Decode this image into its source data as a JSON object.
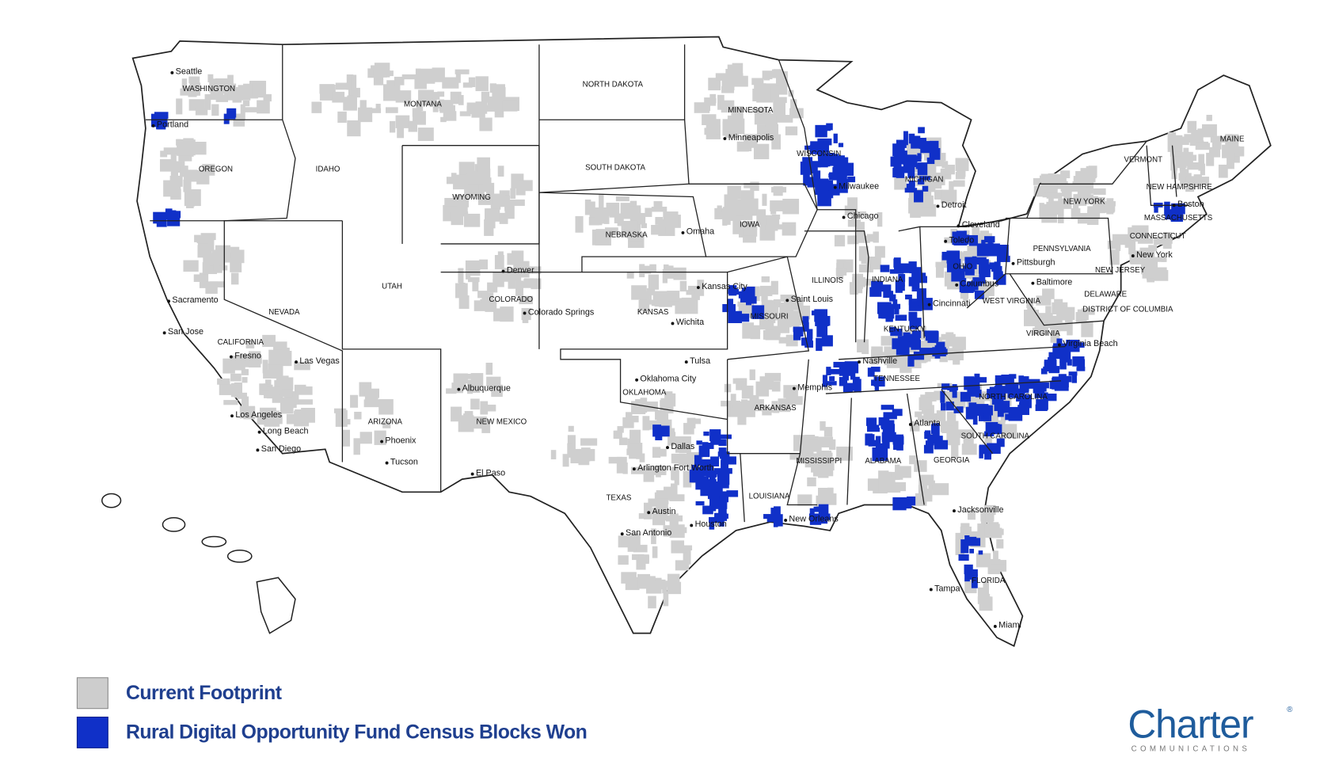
{
  "map": {
    "states": [
      "WASHINGTON",
      "OREGON",
      "CALIFORNIA",
      "NEVADA",
      "IDAHO",
      "MONTANA",
      "WYOMING",
      "UTAH",
      "COLORADO",
      "ARIZONA",
      "NEW MEXICO",
      "NORTH DAKOTA",
      "SOUTH DAKOTA",
      "NEBRASKA",
      "KANSAS",
      "OKLAHOMA",
      "TEXAS",
      "MINNESOTA",
      "IOWA",
      "MISSOURI",
      "ARKANSAS",
      "LOUISIANA",
      "WISCONSIN",
      "ILLINOIS",
      "MICHIGAN",
      "INDIANA",
      "OHIO",
      "KENTUCKY",
      "TENNESSEE",
      "MISSISSIPPI",
      "ALABAMA",
      "GEORGIA",
      "FLORIDA",
      "SOUTH CAROLINA",
      "NORTH CAROLINA",
      "VIRGINIA",
      "WEST VIRGINIA",
      "PENNSYLVANIA",
      "NEW YORK",
      "VERMONT",
      "NEW HAMPSHIRE",
      "MAINE",
      "MASSACHUSETTS",
      "CONNECTICUT",
      "NEW JERSEY",
      "DELAWARE",
      "DISTRICT OF COLUMBIA"
    ],
    "cities": [
      "Seattle",
      "Portland",
      "Sacramento",
      "San Jose",
      "Fresno",
      "Los Angeles",
      "Long Beach",
      "San Diego",
      "Las Vegas",
      "Phoenix",
      "Tucson",
      "Albuquerque",
      "El Paso",
      "Denver",
      "Colorado Springs",
      "Wichita",
      "Tulsa",
      "Oklahoma City",
      "Dallas",
      "Arlington Fort Worth",
      "Austin",
      "San Antonio",
      "Houston",
      "Kansas City",
      "Omaha",
      "Minneapolis",
      "Saint Louis",
      "Memphis",
      "Nashville",
      "Chicago",
      "Milwaukee",
      "Detroit",
      "Toledo",
      "Cleveland",
      "Columbus",
      "Cincinnati",
      "Atlanta",
      "New Orleans",
      "Jacksonville",
      "Tampa",
      "Miami",
      "Pittsburgh",
      "Baltimore",
      "Virginia Beach",
      "New York",
      "Boston"
    ]
  },
  "legend": {
    "items": [
      "Current Footprint",
      "Rural Digital Opportunity Fund Census Blocks Won"
    ]
  },
  "logo": {
    "name": "Charter",
    "mark": "®",
    "tagline": "COMMUNICATIONS"
  }
}
